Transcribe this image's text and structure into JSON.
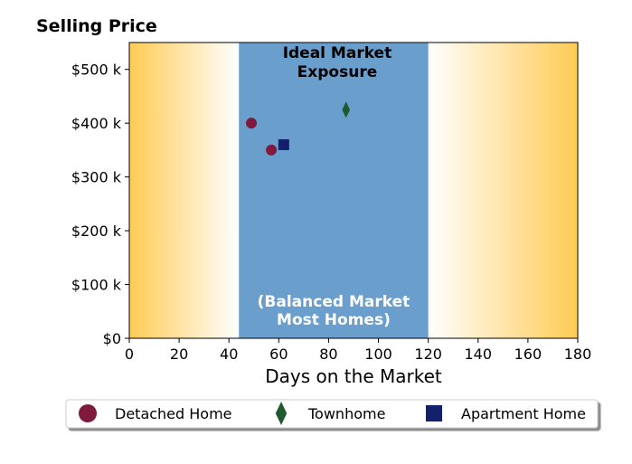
{
  "chart_data": {
    "type": "scatter",
    "title": "Selling Price",
    "xlabel": "Days on the Market",
    "ylabel": "",
    "xlim": [
      0,
      180
    ],
    "ylim": [
      0,
      550000
    ],
    "x_ticks": [
      0,
      20,
      40,
      60,
      80,
      100,
      120,
      140,
      160,
      180
    ],
    "x_tick_labels": [
      "0",
      "20",
      "40",
      "60",
      "80",
      "100",
      "120",
      "140",
      "160",
      "180"
    ],
    "y_ticks": [
      0,
      100000,
      200000,
      300000,
      400000,
      500000
    ],
    "y_tick_labels": [
      "$0",
      "$100 k",
      "$200 k",
      "$300 k",
      "$400 k",
      "$500 k"
    ],
    "grid": false,
    "legend_position": "bottom",
    "background": {
      "gradient_color": "#ffcb55",
      "band": {
        "x_start": 44,
        "x_end": 120,
        "color": "#6a9fcd"
      }
    },
    "annotations": {
      "top_line1": "Ideal Market",
      "top_line2": "Exposure",
      "bottom_line1": "(Balanced Market",
      "bottom_line2": "Most Homes)"
    },
    "series": [
      {
        "name": "Detached Home",
        "marker": "circle",
        "color": "#7f1a3c",
        "points": [
          {
            "x": 49,
            "y": 400000
          },
          {
            "x": 57,
            "y": 350000
          }
        ]
      },
      {
        "name": "Townhome",
        "marker": "diamond",
        "color": "#1f5a2e",
        "points": [
          {
            "x": 87,
            "y": 425000
          }
        ]
      },
      {
        "name": "Apartment Home",
        "marker": "square",
        "color": "#13206b",
        "points": [
          {
            "x": 62,
            "y": 360000
          }
        ]
      }
    ]
  }
}
